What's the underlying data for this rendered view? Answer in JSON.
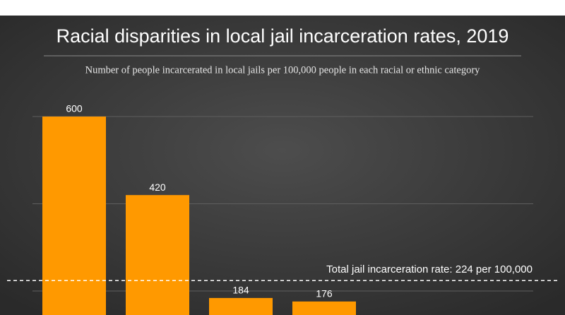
{
  "chart_data": {
    "type": "bar",
    "title": "Racial disparities in local jail incarceration rates, 2019",
    "subtitle": "Number of people incarcerated in local jails per 100,000 people in each racial or ethnic category",
    "categories": [
      null,
      null,
      null,
      null
    ],
    "values": [
      600,
      420,
      184,
      176
    ],
    "color": "#ff9900",
    "ylim": [
      145,
      625
    ],
    "yticks": [
      200,
      400,
      600
    ],
    "grid": true,
    "reference": {
      "value": 224,
      "label": "Total jail incarceration rate: 224 per 100,000"
    }
  }
}
